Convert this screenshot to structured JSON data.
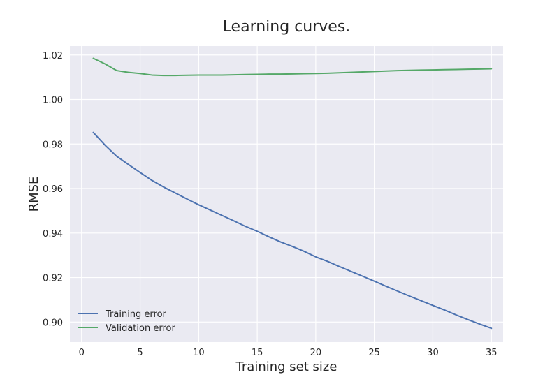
{
  "chart_data": {
    "type": "line",
    "title": "Learning curves.",
    "xlabel": "Training set size",
    "ylabel": "RMSE",
    "xlim": [
      -1,
      36
    ],
    "ylim": [
      0.891,
      1.024
    ],
    "xticks": [
      0,
      5,
      10,
      15,
      20,
      25,
      30,
      35
    ],
    "yticks": [
      0.9,
      0.92,
      0.94,
      0.96,
      0.98,
      1.0,
      1.02
    ],
    "xtick_labels": [
      "0",
      "5",
      "10",
      "15",
      "20",
      "25",
      "30",
      "35"
    ],
    "ytick_labels": [
      "0.90",
      "0.92",
      "0.94",
      "0.96",
      "0.98",
      "1.00",
      "1.02"
    ],
    "grid": true,
    "legend_position": "lower-left",
    "x": [
      1,
      2,
      3,
      4,
      5,
      6,
      7,
      8,
      9,
      10,
      11,
      12,
      13,
      14,
      15,
      16,
      17,
      18,
      19,
      20,
      21,
      22,
      23,
      24,
      25,
      26,
      27,
      28,
      29,
      30,
      31,
      32,
      33,
      34,
      35
    ],
    "series": [
      {
        "name": "Training error",
        "color": "#4c72b0",
        "values": [
          0.9852,
          0.9795,
          0.9745,
          0.9708,
          0.9672,
          0.9637,
          0.9607,
          0.958,
          0.9553,
          0.9527,
          0.9503,
          0.9479,
          0.9455,
          0.943,
          0.9408,
          0.9383,
          0.936,
          0.934,
          0.9318,
          0.9293,
          0.9273,
          0.925,
          0.9228,
          0.9206,
          0.9184,
          0.9161,
          0.9139,
          0.9117,
          0.9096,
          0.9075,
          0.9054,
          0.9032,
          0.9011,
          0.8991,
          0.8972
        ]
      },
      {
        "name": "Validation error",
        "color": "#55a868",
        "values": [
          1.0185,
          1.016,
          1.013,
          1.0122,
          1.0117,
          1.011,
          1.0108,
          1.0108,
          1.0109,
          1.011,
          1.011,
          1.011,
          1.0111,
          1.0112,
          1.0113,
          1.0114,
          1.0114,
          1.0115,
          1.0116,
          1.0117,
          1.0118,
          1.012,
          1.0122,
          1.0124,
          1.0126,
          1.0128,
          1.013,
          1.0131,
          1.0132,
          1.0133,
          1.0134,
          1.0135,
          1.0136,
          1.0137,
          1.0138
        ]
      }
    ]
  },
  "colors": {
    "plot_background": "#eaeaf2",
    "grid": "#ffffff",
    "text": "#262626"
  }
}
